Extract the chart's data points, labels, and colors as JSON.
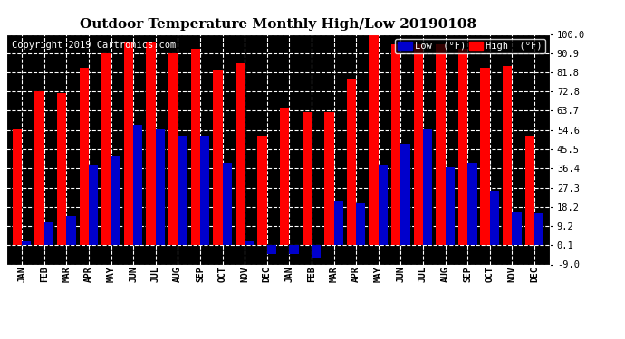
{
  "title": "Outdoor Temperature Monthly High/Low 20190108",
  "copyright": "Copyright 2019 Cartronics.com",
  "legend_low": "Low  (°F)",
  "legend_high": "High  (°F)",
  "months": [
    "JAN",
    "FEB",
    "MAR",
    "APR",
    "MAY",
    "JUN",
    "JUL",
    "AUG",
    "SEP",
    "OCT",
    "NOV",
    "DEC",
    "JAN",
    "FEB",
    "MAR",
    "APR",
    "MAY",
    "JUN",
    "JUL",
    "AUG",
    "SEP",
    "OCT",
    "NOV",
    "DEC"
  ],
  "high_vals": [
    55,
    73,
    72,
    84,
    91,
    96,
    96,
    91,
    93,
    83,
    86,
    52,
    65,
    63,
    63,
    79,
    101,
    95,
    95,
    95,
    93,
    84,
    85,
    52
  ],
  "low_vals": [
    2,
    11,
    14,
    38,
    42,
    57,
    55,
    52,
    52,
    39,
    2,
    -4,
    -4,
    -6,
    21,
    20,
    38,
    48,
    55,
    37,
    39,
    26,
    16,
    15
  ],
  "ylim": [
    -9,
    100
  ],
  "yticks": [
    -9.0,
    0.1,
    9.2,
    18.2,
    27.3,
    36.4,
    45.5,
    54.6,
    63.7,
    72.8,
    81.8,
    90.9,
    100.0
  ],
  "ytick_labels": [
    "-9.0",
    "0.1",
    "9.2",
    "18.2",
    "27.3",
    "36.4",
    "45.5",
    "54.6",
    "63.7",
    "72.8",
    "81.8",
    "90.9",
    "100.0"
  ],
  "high_color": "#ff0000",
  "low_color": "#0000cc",
  "background_color": "#ffffff",
  "plot_bg_color": "#000000",
  "grid_color": "#ffffff",
  "title_fontsize": 11,
  "copyright_fontsize": 7.5,
  "bar_width": 0.42
}
